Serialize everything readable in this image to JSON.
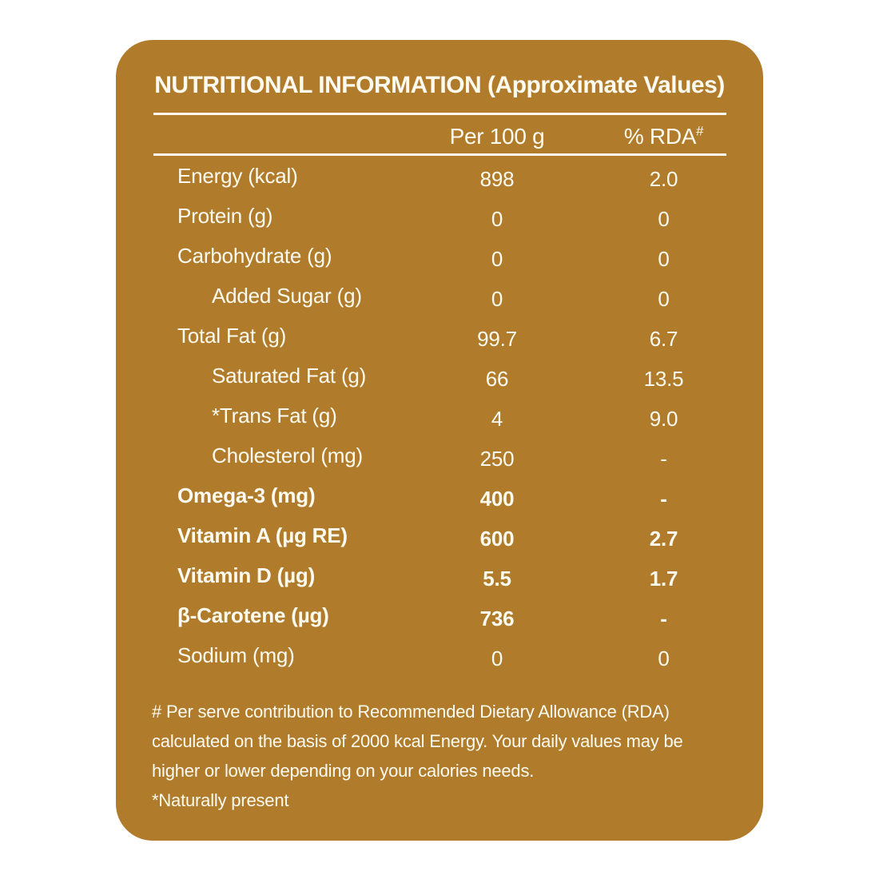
{
  "title": "NUTRITIONAL INFORMATION (Approximate Values)",
  "table": {
    "columns": {
      "per_100g": "Per 100 g",
      "rda": "% RDA",
      "rda_superscript": "#"
    },
    "rows": [
      {
        "label": "Energy (kcal)",
        "per_100g": "898",
        "rda_percent": "2.0",
        "indent": false,
        "bold": false
      },
      {
        "label": "Protein (g)",
        "per_100g": "0",
        "rda_percent": "0",
        "indent": false,
        "bold": false
      },
      {
        "label": "Carbohydrate (g)",
        "per_100g": "0",
        "rda_percent": "0",
        "indent": false,
        "bold": false
      },
      {
        "label": "Added Sugar (g)",
        "per_100g": "0",
        "rda_percent": "0",
        "indent": true,
        "bold": false
      },
      {
        "label": "Total Fat (g)",
        "per_100g": "99.7",
        "rda_percent": "6.7",
        "indent": false,
        "bold": false
      },
      {
        "label": "Saturated Fat (g)",
        "per_100g": "66",
        "rda_percent": "13.5",
        "indent": true,
        "bold": false
      },
      {
        "label": "*Trans Fat (g)",
        "per_100g": "4",
        "rda_percent": "9.0",
        "indent": true,
        "bold": false
      },
      {
        "label": "Cholesterol (mg)",
        "per_100g": "250",
        "rda_percent": "-",
        "indent": true,
        "bold": false
      },
      {
        "label": "Omega-3 (mg)",
        "per_100g": "400",
        "rda_percent": "-",
        "indent": false,
        "bold": true
      },
      {
        "label": "Vitamin A (µg RE)",
        "per_100g": "600",
        "rda_percent": "2.7",
        "indent": false,
        "bold": true
      },
      {
        "label": "Vitamin D (µg)",
        "per_100g": "5.5",
        "rda_percent": "1.7",
        "indent": false,
        "bold": true
      },
      {
        "label": "β-Carotene (µg)",
        "per_100g": "736",
        "rda_percent": "-",
        "indent": false,
        "bold": true
      },
      {
        "label": "Sodium (mg)",
        "per_100g": "0",
        "rda_percent": "0",
        "indent": false,
        "bold": false
      }
    ]
  },
  "footnotes": {
    "rda_note_lines": [
      "# Per serve contribution to Recommended Dietary Allowance (RDA)",
      "calculated on the basis of 2000 kcal Energy. Your daily values may be",
      "higher or lower depending on your calories needs."
    ],
    "naturally_present_note": "*Naturally present"
  },
  "colors": {
    "card_background": "#B07C2C",
    "text_color": "#FDFAF0",
    "page_background": "#FFFFFF"
  }
}
